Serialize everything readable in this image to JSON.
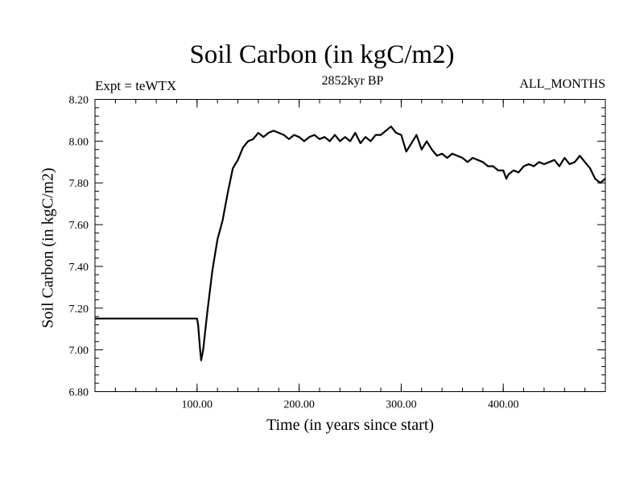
{
  "chart_data": {
    "type": "line",
    "title": "Soil Carbon (in kgC/m2)",
    "experiment_label": "Expt = teWTX",
    "subtitle": "2852kyr BP",
    "months_label": "ALL_MONTHS",
    "xlabel": "Time (in years since start)",
    "ylabel": "Soil Carbon (in kgC/m2)",
    "xlim": [
      0,
      500
    ],
    "ylim": [
      6.8,
      8.2
    ],
    "x_ticks": [
      100,
      200,
      300,
      400
    ],
    "x_tick_labels": [
      "100.00",
      "200.00",
      "300.00",
      "400.00"
    ],
    "y_ticks": [
      6.8,
      7.0,
      7.2,
      7.4,
      7.6,
      7.8,
      8.0,
      8.2
    ],
    "y_tick_labels": [
      "6.80",
      "7.00",
      "7.20",
      "7.40",
      "7.60",
      "7.80",
      "8.00",
      "8.20"
    ],
    "series": [
      {
        "name": "Soil Carbon",
        "x": [
          0,
          100,
          101,
          103,
          104,
          106,
          110,
          115,
          120,
          125,
          130,
          135,
          140,
          145,
          150,
          155,
          160,
          165,
          170,
          175,
          180,
          185,
          190,
          195,
          200,
          205,
          210,
          215,
          220,
          225,
          230,
          235,
          240,
          245,
          250,
          255,
          260,
          265,
          270,
          275,
          280,
          285,
          290,
          295,
          300,
          305,
          310,
          315,
          320,
          325,
          330,
          335,
          340,
          345,
          350,
          355,
          360,
          365,
          370,
          375,
          380,
          385,
          390,
          395,
          400,
          403,
          405,
          410,
          415,
          420,
          425,
          430,
          435,
          440,
          445,
          450,
          455,
          460,
          465,
          470,
          475,
          480,
          485,
          490,
          495,
          500
        ],
        "values": [
          7.15,
          7.15,
          7.12,
          7.0,
          6.95,
          7.0,
          7.18,
          7.38,
          7.53,
          7.62,
          7.75,
          7.87,
          7.91,
          7.97,
          8.0,
          8.01,
          8.04,
          8.02,
          8.04,
          8.05,
          8.04,
          8.03,
          8.01,
          8.03,
          8.02,
          8.0,
          8.02,
          8.03,
          8.01,
          8.02,
          8.0,
          8.03,
          8.0,
          8.02,
          8.0,
          8.04,
          7.99,
          8.02,
          8.0,
          8.03,
          8.03,
          8.05,
          8.07,
          8.04,
          8.03,
          7.95,
          7.99,
          8.03,
          7.96,
          8.0,
          7.96,
          7.93,
          7.94,
          7.92,
          7.94,
          7.93,
          7.92,
          7.9,
          7.92,
          7.91,
          7.9,
          7.88,
          7.88,
          7.86,
          7.86,
          7.82,
          7.84,
          7.86,
          7.85,
          7.88,
          7.89,
          7.88,
          7.9,
          7.89,
          7.9,
          7.91,
          7.88,
          7.92,
          7.89,
          7.9,
          7.93,
          7.9,
          7.87,
          7.82,
          7.8,
          7.82
        ]
      }
    ]
  }
}
